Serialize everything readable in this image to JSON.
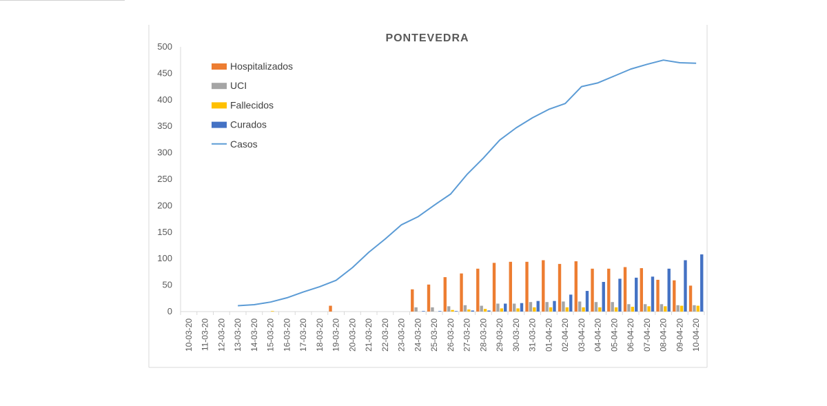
{
  "chart_data": {
    "type": "bar",
    "title": "PONTEVEDRA",
    "xlabel": "",
    "ylabel": "",
    "ylim": [
      0,
      500
    ],
    "yticks": [
      0,
      50,
      100,
      150,
      200,
      250,
      300,
      350,
      400,
      450,
      500
    ],
    "grid": false,
    "legend_position": "top-left",
    "categories": [
      "10-03-20",
      "11-03-20",
      "12-03-20",
      "13-03-20",
      "14-03-20",
      "15-03-20",
      "16-03-20",
      "17-03-20",
      "18-03-20",
      "19-03-20",
      "20-03-20",
      "21-03-20",
      "22-03-20",
      "23-03-20",
      "24-03-20",
      "25-03-20",
      "26-03-20",
      "27-03-20",
      "28-03-20",
      "29-03-20",
      "30-03-20",
      "31-03-20",
      "01-04-20",
      "02-04-20",
      "03-04-20",
      "04-04-20",
      "05-04-20",
      "06-04-20",
      "07-04-20",
      "08-04-20",
      "09-04-20",
      "10-04-20"
    ],
    "series": [
      {
        "name": "Hospitalizados",
        "type": "bar",
        "color": "#ED7D31",
        "values": [
          0,
          0,
          0,
          0,
          0,
          0,
          0,
          0,
          0,
          11,
          0,
          0,
          0,
          0,
          42,
          51,
          65,
          72,
          81,
          92,
          94,
          94,
          97,
          90,
          95,
          81,
          81,
          84,
          82,
          60,
          59,
          49
        ]
      },
      {
        "name": "UCI",
        "type": "bar",
        "color": "#A5A5A5",
        "values": [
          0,
          0,
          0,
          0,
          0,
          0,
          0,
          0,
          0,
          0,
          0,
          0,
          0,
          0,
          8,
          8,
          10,
          12,
          11,
          15,
          15,
          18,
          18,
          19,
          19,
          18,
          18,
          14,
          14,
          14,
          12,
          12
        ]
      },
      {
        "name": "Fallecidos",
        "type": "bar",
        "color": "#FFC000",
        "values": [
          0,
          0,
          0,
          0,
          0,
          1,
          0,
          0,
          0,
          0,
          0,
          0,
          0,
          0,
          0,
          0,
          3,
          4,
          5,
          6,
          6,
          8,
          8,
          8,
          8,
          8,
          8,
          9,
          10,
          10,
          11,
          11
        ]
      },
      {
        "name": "Curados",
        "type": "bar",
        "color": "#4472C4",
        "values": [
          0,
          0,
          0,
          0,
          0,
          0,
          0,
          0,
          0,
          0,
          0,
          0,
          0,
          0,
          1,
          1,
          1,
          2,
          2,
          15,
          16,
          20,
          20,
          32,
          39,
          56,
          62,
          64,
          66,
          81,
          97,
          108
        ]
      },
      {
        "name": "Casos",
        "type": "line",
        "color": "#5B9BD5",
        "values": [
          null,
          null,
          null,
          11,
          13,
          18,
          26,
          37,
          47,
          59,
          83,
          112,
          137,
          164,
          179,
          201,
          222,
          259,
          290,
          324,
          347,
          366,
          382,
          393,
          425,
          432,
          445,
          458,
          467,
          475,
          470,
          469
        ]
      }
    ]
  }
}
